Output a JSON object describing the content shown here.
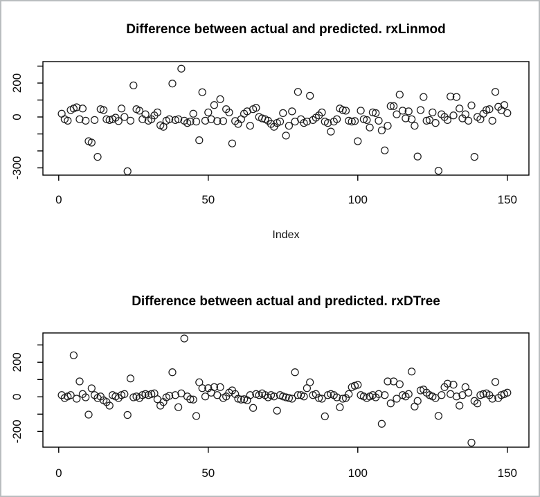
{
  "figure": {
    "background": "#ffffff",
    "border_color": "#b9bdbf",
    "plot_stroke": "#000000"
  },
  "panel1": {
    "title": "Difference between actual and predicted. rxLinmod",
    "xlabel": "Index"
  },
  "panel2": {
    "title": "Difference between actual and predicted. rxDTree",
    "xlabel": ""
  },
  "chart_data": [
    {
      "type": "scatter",
      "title": "Difference between actual and predicted. rxLinmod",
      "xlabel": "Index",
      "ylabel": "",
      "marker": "open-circle",
      "grid": false,
      "x_ticks": [
        0,
        50,
        100,
        150
      ],
      "y_ticks": [
        300,
        200,
        100,
        0,
        -100,
        -200,
        -300
      ],
      "y_tick_labels_shown": [
        200,
        0,
        -300
      ],
      "xlim": [
        -5,
        156
      ],
      "ylim": [
        -330,
        320
      ],
      "x_start": 1,
      "y": [
        19,
        -13,
        -22,
        41,
        50,
        57,
        -13,
        50,
        -22,
        -143,
        -151,
        -18,
        -235,
        46,
        41,
        -13,
        -18,
        -13,
        -4,
        -24,
        50,
        0,
        -320,
        -22,
        186,
        46,
        37,
        -13,
        16,
        -22,
        -13,
        9,
        27,
        -49,
        -58,
        -22,
        -13,
        197,
        -18,
        -13,
        285,
        -22,
        -35,
        -27,
        19,
        -27,
        -137,
        146,
        -22,
        27,
        -13,
        70,
        -24,
        105,
        -24,
        46,
        27,
        -156,
        -24,
        -41,
        -13,
        19,
        33,
        -52,
        46,
        54,
        0,
        -8,
        -13,
        -22,
        -41,
        -58,
        -35,
        -27,
        23,
        -110,
        -52,
        33,
        -27,
        148,
        -13,
        -35,
        -27,
        125,
        -18,
        -4,
        9,
        27,
        -27,
        -35,
        -86,
        -27,
        -13,
        50,
        41,
        37,
        -22,
        -27,
        -24,
        -143,
        37,
        -13,
        -18,
        -62,
        27,
        23,
        -22,
        -79,
        -197,
        -52,
        64,
        64,
        16,
        132,
        37,
        -8,
        33,
        -13,
        -52,
        -233,
        41,
        118,
        -22,
        -18,
        27,
        -35,
        -317,
        16,
        0,
        -18,
        121,
        9,
        118,
        50,
        -8,
        16,
        -22,
        68,
        -235,
        0,
        -13,
        19,
        41,
        46,
        -22,
        148,
        60,
        40,
        70,
        23
      ]
    },
    {
      "type": "scatter",
      "title": "Difference between actual and predicted. rxDTree",
      "xlabel": "",
      "ylabel": "",
      "marker": "open-circle",
      "grid": false,
      "x_ticks": [
        0,
        50,
        100,
        150
      ],
      "y_ticks": [
        300,
        200,
        100,
        0,
        -100,
        -200
      ],
      "y_tick_labels_shown": [
        200,
        0,
        -200
      ],
      "xlim": [
        -5,
        156
      ],
      "ylim": [
        -290,
        360
      ],
      "x_start": 1,
      "y": [
        10,
        -7,
        2,
        10,
        240,
        -11,
        89,
        16,
        -3,
        -103,
        49,
        10,
        -7,
        2,
        -20,
        -30,
        -51,
        10,
        2,
        -7,
        10,
        16,
        -105,
        106,
        -3,
        2,
        -7,
        10,
        16,
        10,
        16,
        20,
        -14,
        -51,
        -30,
        -3,
        6,
        142,
        10,
        -60,
        20,
        337,
        2,
        -14,
        -16,
        -111,
        84,
        50,
        2,
        50,
        24,
        56,
        10,
        56,
        -7,
        2,
        24,
        37,
        16,
        -11,
        -16,
        -14,
        -20,
        10,
        -64,
        16,
        10,
        20,
        10,
        -3,
        10,
        2,
        -80,
        10,
        2,
        -3,
        -7,
        -11,
        142,
        10,
        10,
        2,
        50,
        84,
        10,
        16,
        -7,
        -11,
        -113,
        10,
        16,
        10,
        -3,
        -60,
        -11,
        -7,
        16,
        56,
        64,
        69,
        10,
        2,
        -7,
        2,
        10,
        -3,
        16,
        -156,
        10,
        89,
        -38,
        89,
        -11,
        73,
        10,
        2,
        16,
        146,
        -56,
        -24,
        37,
        42,
        24,
        10,
        2,
        -7,
        -110,
        10,
        56,
        76,
        16,
        70,
        2,
        -51,
        10,
        56,
        24,
        -265,
        -24,
        -38,
        10,
        16,
        20,
        10,
        -11,
        86,
        -7,
        10,
        16,
        24
      ]
    }
  ]
}
